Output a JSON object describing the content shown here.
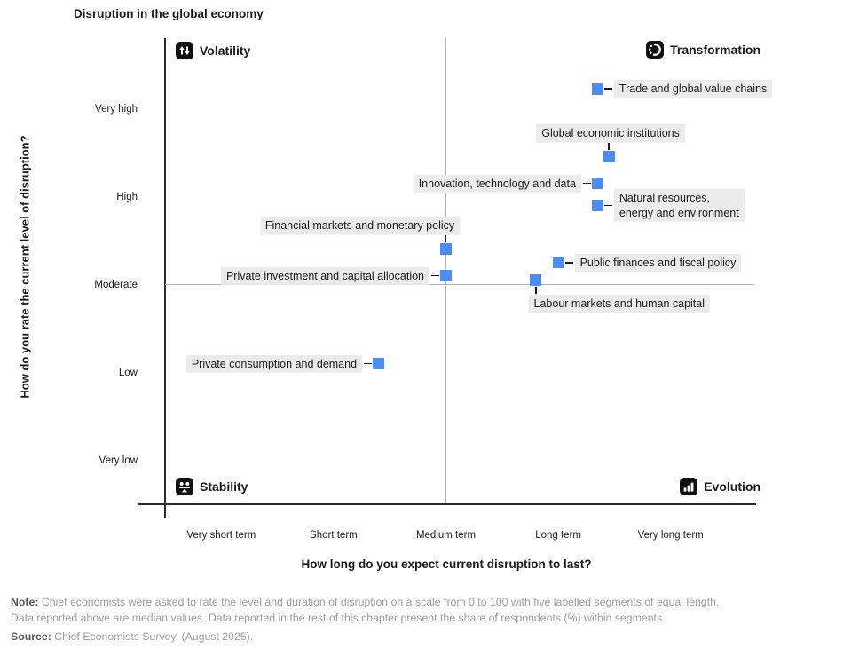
{
  "title": "Disruption in the global economy",
  "quadrants": {
    "top_left": {
      "label": "Volatility",
      "icon": "up-down-arrows-icon"
    },
    "top_right": {
      "label": "Transformation",
      "icon": "metamorphosis-icon"
    },
    "bottom_left": {
      "label": "Stability",
      "icon": "balance-scale-icon"
    },
    "bottom_right": {
      "label": "Evolution",
      "icon": "rising-bar-chart-icon"
    }
  },
  "chart_data": {
    "type": "scatter",
    "title": "Disruption in the global economy",
    "xlabel": "How long do you expect current disruption to last?",
    "ylabel": "How do you rate the current level of disruption?",
    "xlim": [
      0,
      100
    ],
    "ylim": [
      0,
      100
    ],
    "grid": "quadrant dividers at x=50 and y=50",
    "x_tick_labels": [
      "Very short term",
      "Short term",
      "Medium term",
      "Long term",
      "Very long term"
    ],
    "y_tick_labels": [
      "Very low",
      "Low",
      "Moderate",
      "High",
      "Very high"
    ],
    "marker_color": "#4d8df2",
    "label_bg": "#ebebeb",
    "points": [
      {
        "label": "Trade and global value chains",
        "x": 77,
        "y": 94.5,
        "label_side": "right"
      },
      {
        "label": "Global economic institutions",
        "x": 79,
        "y": 79,
        "label_side": "above",
        "label_dx": 2
      },
      {
        "label": "Innovation, technology and data",
        "x": 77,
        "y": 73,
        "label_side": "left"
      },
      {
        "label": "Natural resources,\nenergy and environment",
        "x": 77,
        "y": 68,
        "label_side": "right"
      },
      {
        "label": "Financial markets and monetary policy",
        "x": 50,
        "y": 58,
        "label_side": "above",
        "label_dx": -97
      },
      {
        "label": "Public finances and fiscal policy",
        "x": 70,
        "y": 55,
        "label_side": "right"
      },
      {
        "label": "Private investment and capital allocation",
        "x": 50,
        "y": 52,
        "label_side": "left"
      },
      {
        "label": "Labour markets and human capital",
        "x": 66,
        "y": 51,
        "label_side": "below",
        "label_dx": 94
      },
      {
        "label": "Private consumption and demand",
        "x": 38,
        "y": 32,
        "label_side": "left"
      }
    ]
  },
  "notes": {
    "note_label": "Note:",
    "note_text1": "Chief economists were asked to rate the level and duration of disruption on a scale from 0 to 100 with five labelled segments of equal length.",
    "note_text2": "Data reported above are median values. Data reported in the rest of this chapter present the share of respondents (%) within segments.",
    "source_label": "Source:",
    "source_text": "Chief Economists Survey. (August 2025)."
  }
}
